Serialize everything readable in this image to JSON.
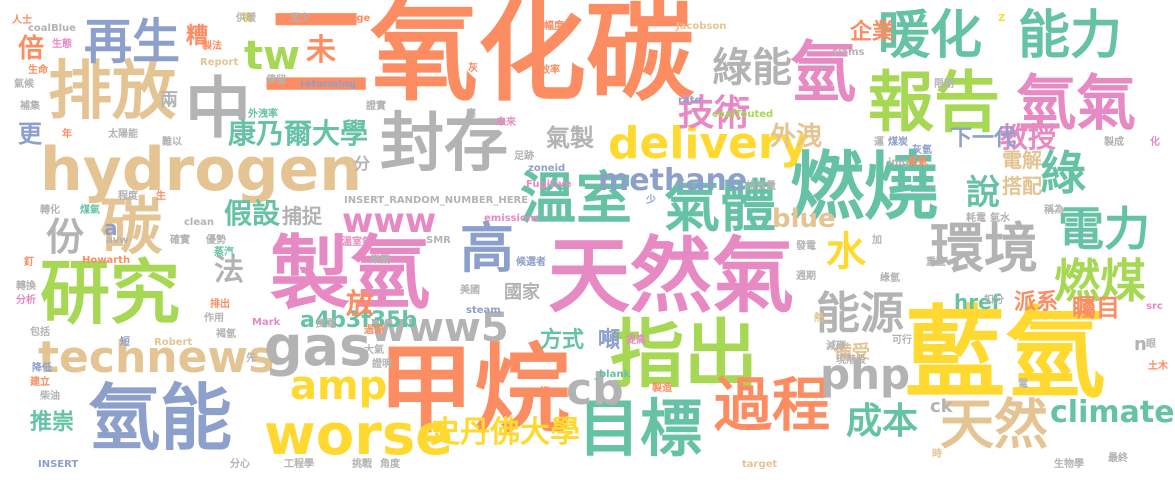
{
  "colors": {
    "orange": "#fc8d62",
    "teal": "#66c2a5",
    "blue": "#8da0cb",
    "pink": "#e78ac3",
    "green": "#a6d854",
    "yellow": "#ffd92f",
    "tan": "#e5c494",
    "gray": "#b3b3b3"
  },
  "words": [
    {
      "text": "二氧化碳",
      "color": "orange"
    },
    {
      "text": "藍氫",
      "color": "yellow"
    },
    {
      "text": "甲烷",
      "color": "orange"
    },
    {
      "text": "天然氣",
      "color": "pink"
    },
    {
      "text": "燃燒",
      "color": "teal"
    },
    {
      "text": "製氫",
      "color": "pink"
    },
    {
      "text": "指出",
      "color": "green"
    },
    {
      "text": "封存",
      "color": "gray"
    },
    {
      "text": "hydrogen",
      "color": "tan"
    },
    {
      "text": "研究",
      "color": "green"
    },
    {
      "text": "氫能",
      "color": "blue"
    },
    {
      "text": "報告",
      "color": "green"
    },
    {
      "text": "排放",
      "color": "tan"
    },
    {
      "text": "中",
      "color": "gray"
    },
    {
      "text": "溫室",
      "color": "teal"
    },
    {
      "text": "氣體",
      "color": "teal"
    },
    {
      "text": "氫氣",
      "color": "pink"
    },
    {
      "text": "暖化",
      "color": "teal"
    },
    {
      "text": "能力",
      "color": "teal"
    },
    {
      "text": "worse",
      "color": "yellow"
    },
    {
      "text": "目標",
      "color": "teal"
    },
    {
      "text": "過程",
      "color": "orange"
    },
    {
      "text": "環境",
      "color": "gray"
    },
    {
      "text": "technews",
      "color": "tan"
    },
    {
      "text": "再生",
      "color": "blue"
    },
    {
      "text": "氫",
      "color": "pink"
    },
    {
      "text": "碳",
      "color": "tan"
    },
    {
      "text": "delivery",
      "color": "yellow"
    },
    {
      "text": "gas",
      "color": "gray"
    },
    {
      "text": "www5",
      "color": "gray"
    },
    {
      "text": "天然",
      "color": "tan"
    },
    {
      "text": "高",
      "color": "blue"
    },
    {
      "text": "amp",
      "color": "yellow"
    },
    {
      "text": "cb",
      "color": "gray"
    },
    {
      "text": "php",
      "color": "gray"
    },
    {
      "text": "燃煤",
      "color": "green"
    },
    {
      "text": "電力",
      "color": "teal"
    },
    {
      "text": "綠",
      "color": "teal"
    },
    {
      "text": "能源",
      "color": "gray"
    },
    {
      "text": "www",
      "color": "pink"
    },
    {
      "text": "methane",
      "color": "blue"
    },
    {
      "text": "技術",
      "color": "pink"
    },
    {
      "text": "tw",
      "color": "green"
    },
    {
      "text": "綠能",
      "color": "gray"
    },
    {
      "text": "份",
      "color": "gray"
    },
    {
      "text": "水",
      "color": "yellow"
    },
    {
      "text": "成本",
      "color": "teal"
    },
    {
      "text": "史丹佛大學",
      "color": "yellow"
    },
    {
      "text": "康乃爾大學",
      "color": "teal"
    },
    {
      "text": "a4b3f35b",
      "color": "teal"
    },
    {
      "text": "climate",
      "color": "teal"
    },
    {
      "text": "教授",
      "color": "pink"
    },
    {
      "text": "說",
      "color": "teal"
    },
    {
      "text": "法",
      "color": "gray"
    },
    {
      "text": "假設",
      "color": "teal"
    },
    {
      "text": "放",
      "color": "orange"
    },
    {
      "text": "方式",
      "color": "teal"
    },
    {
      "text": "blue",
      "color": "tan"
    },
    {
      "text": "外洩",
      "color": "tan"
    },
    {
      "text": "氣製",
      "color": "gray"
    },
    {
      "text": "未",
      "color": "orange"
    },
    {
      "text": "推崇",
      "color": "teal"
    },
    {
      "text": "企業",
      "color": "orange"
    },
    {
      "text": "下一代",
      "color": "blue"
    },
    {
      "text": "電解",
      "color": "tan"
    },
    {
      "text": "搭配",
      "color": "tan"
    },
    {
      "text": "矚目",
      "color": "orange"
    },
    {
      "text": "派系",
      "color": "orange"
    },
    {
      "text": "捕捉",
      "color": "gray"
    },
    {
      "text": "href",
      "color": "teal"
    },
    {
      "text": "倍",
      "color": "orange"
    },
    {
      "text": "更",
      "color": "blue"
    },
    {
      "text": "糟",
      "color": "orange"
    },
    {
      "text": "國家",
      "color": "gray"
    },
    {
      "text": "備受",
      "color": "tan"
    },
    {
      "text": "ck",
      "color": "gray"
    },
    {
      "text": "n",
      "color": "gray"
    },
    {
      "text": "a",
      "color": "blue"
    },
    {
      "text": "噸",
      "color": "blue"
    },
    {
      "text": "分",
      "color": "gray"
    },
    {
      "text": "兩",
      "color": "gray"
    },
    {
      "text": "人士",
      "color": "orange"
    },
    {
      "text": "coalBlue",
      "color": "gray"
    },
    {
      "text": "生命",
      "color": "orange"
    },
    {
      "text": "氣候",
      "color": "gray"
    },
    {
      "text": "補集",
      "color": "gray"
    },
    {
      "text": "生態",
      "color": "pink"
    },
    {
      "text": "稿",
      "color": "yellow"
    },
    {
      "text": "供暖",
      "color": "gray"
    },
    {
      "text": "製法",
      "color": "orange"
    },
    {
      "text": "Report",
      "color": "tan"
    },
    {
      "text": "停留",
      "color": "gray"
    },
    {
      "text": "至少",
      "color": "gray"
    },
    {
      "text": "leakage",
      "color": "orange"
    },
    {
      "text": "reforming",
      "color": "blue"
    },
    {
      "text": "幅度",
      "color": "orange"
    },
    {
      "text": "Jacobson",
      "color": "tan"
    },
    {
      "text": "slams",
      "color": "gray"
    },
    {
      "text": "Z",
      "color": "yellow"
    },
    {
      "text": "灰",
      "color": "orange"
    },
    {
      "text": "效率",
      "color": "orange"
    },
    {
      "text": "限期",
      "color": "gray"
    },
    {
      "text": "外洩率",
      "color": "teal"
    },
    {
      "text": "證實",
      "color": "gray"
    },
    {
      "text": "rate",
      "color": "blue"
    },
    {
      "text": "coalTouted",
      "color": "green"
    },
    {
      "text": "太陽能",
      "color": "gray"
    },
    {
      "text": "年",
      "color": "orange"
    },
    {
      "text": "難以",
      "color": "gray"
    },
    {
      "text": "應",
      "color": "gray"
    },
    {
      "text": "未來",
      "color": "pink"
    },
    {
      "text": "運",
      "color": "gray"
    },
    {
      "text": "煤炭",
      "color": "blue"
    },
    {
      "text": "灰氫",
      "color": "blue"
    },
    {
      "text": "製成",
      "color": "gray"
    },
    {
      "text": "化",
      "color": "pink"
    },
    {
      "text": "足跡",
      "color": "gray"
    },
    {
      "text": "zoneid",
      "color": "blue"
    },
    {
      "text": "img",
      "color": "gray"
    },
    {
      "text": "蒸氣",
      "color": "orange"
    },
    {
      "text": "Fugitive",
      "color": "pink"
    },
    {
      "text": "排放量",
      "color": "gray"
    },
    {
      "text": "INSERT_RANDOM_NUMBER_HERE",
      "color": "gray"
    },
    {
      "text": "程度",
      "color": "gray"
    },
    {
      "text": "生",
      "color": "orange"
    },
    {
      "text": "煤氣",
      "color": "teal"
    },
    {
      "text": "轉化",
      "color": "gray"
    },
    {
      "text": "少",
      "color": "blue"
    },
    {
      "text": "耗電",
      "color": "gray"
    },
    {
      "text": "氣水",
      "color": "gray"
    },
    {
      "text": "稱為",
      "color": "gray"
    },
    {
      "text": "clean",
      "color": "gray"
    },
    {
      "text": "emissions",
      "color": "pink"
    },
    {
      "text": "avw",
      "color": "gray"
    },
    {
      "text": "確實",
      "color": "gray"
    },
    {
      "text": "優勢",
      "color": "gray"
    },
    {
      "text": "SMR",
      "color": "gray"
    },
    {
      "text": "溫室氣",
      "color": "pink"
    },
    {
      "text": "Howarth",
      "color": "orange"
    },
    {
      "text": "蒸汽",
      "color": "teal"
    },
    {
      "text": "加",
      "color": "gray"
    },
    {
      "text": "發電",
      "color": "gray"
    },
    {
      "text": "釘",
      "color": "orange"
    },
    {
      "text": "樂觀",
      "color": "gray"
    },
    {
      "text": "候選者",
      "color": "blue"
    },
    {
      "text": "週期",
      "color": "gray"
    },
    {
      "text": "綠氫",
      "color": "gray"
    },
    {
      "text": "重整",
      "color": "gray"
    },
    {
      "text": "轉換",
      "color": "gray"
    },
    {
      "text": "分析",
      "color": "pink"
    },
    {
      "text": "排出",
      "color": "orange"
    },
    {
      "text": "美國",
      "color": "gray"
    },
    {
      "text": "steam",
      "color": "blue"
    },
    {
      "text": "扣分",
      "color": "gray"
    },
    {
      "text": "src",
      "color": "pink"
    },
    {
      "text": "包括",
      "color": "gray"
    },
    {
      "text": "作用",
      "color": "gray"
    },
    {
      "text": "Mark",
      "color": "pink"
    },
    {
      "text": "風電",
      "color": "gray"
    },
    {
      "text": "過源",
      "color": "orange"
    },
    {
      "text": "熱",
      "color": "tan"
    },
    {
      "text": "可行",
      "color": "gray"
    },
    {
      "text": "褐氫",
      "color": "gray"
    },
    {
      "text": "短",
      "color": "blue"
    },
    {
      "text": "Robert",
      "color": "tan"
    },
    {
      "text": "大氣",
      "color": "gray"
    },
    {
      "text": "提高",
      "color": "pink"
    },
    {
      "text": "減碳",
      "color": "gray"
    },
    {
      "text": "眼",
      "color": "gray"
    },
    {
      "text": "降低",
      "color": "blue"
    },
    {
      "text": "先",
      "color": "gray"
    },
    {
      "text": "證明",
      "color": "gray"
    },
    {
      "text": "現階段",
      "color": "gray"
    },
    {
      "text": "土木",
      "color": "orange"
    },
    {
      "text": "建立",
      "color": "orange"
    },
    {
      "text": "_blank",
      "color": "teal"
    },
    {
      "text": "電",
      "color": "gray"
    },
    {
      "text": "柴油",
      "color": "gray"
    },
    {
      "text": "沒",
      "color": "orange"
    },
    {
      "text": "製造",
      "color": "orange"
    },
    {
      "text": "INSERT",
      "color": "blue"
    },
    {
      "text": "分心",
      "color": "gray"
    },
    {
      "text": "工程學",
      "color": "gray"
    },
    {
      "text": "挑戰",
      "color": "gray"
    },
    {
      "text": "角度",
      "color": "gray"
    },
    {
      "text": "target",
      "color": "tan"
    },
    {
      "text": "時",
      "color": "tan"
    },
    {
      "text": "生物學",
      "color": "gray"
    },
    {
      "text": "最終",
      "color": "gray"
    }
  ]
}
